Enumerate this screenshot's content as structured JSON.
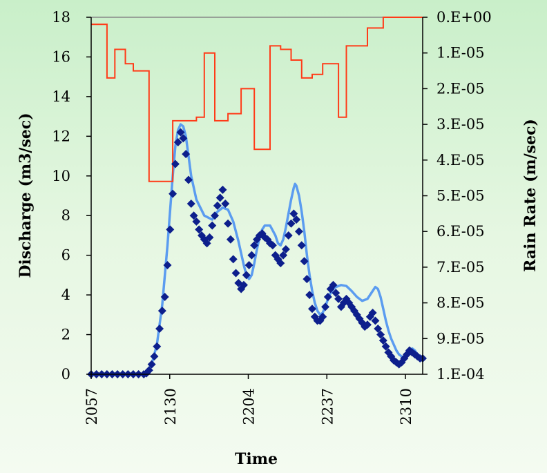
{
  "chart_data": {
    "type": "line",
    "title": "",
    "xlabel": "Time",
    "ylabel": "Discharge (m3/sec)",
    "y2label": "Rain Rate (m/sec)",
    "x_tick_labels": [
      "2057",
      "2130",
      "2204",
      "2237",
      "2310"
    ],
    "ylim": [
      0,
      18
    ],
    "y_ticks": [
      "0",
      "2",
      "4",
      "6",
      "8",
      "10",
      "12",
      "14",
      "16",
      "18"
    ],
    "y2lim": [
      0.0001,
      0
    ],
    "y2_ticks": [
      "1.E-04",
      "9.E-05",
      "8.E-05",
      "7.E-05",
      "6.E-05",
      "5.E-05",
      "4.E-05",
      "3.E-05",
      "2.E-05",
      "1.E-05",
      "0.E+00"
    ],
    "grid": false,
    "colors": {
      "observed": "#0d1f8c",
      "simulated": "#5b9cf0",
      "rain": "#ff3b18",
      "top_line": "#888888"
    },
    "series": [
      {
        "kind": "scatter",
        "axis": "left",
        "color": "#0d1f8c",
        "marker": "diamond",
        "points": [
          [
            0.0,
            0.0
          ],
          [
            0.02,
            0.0
          ],
          [
            0.04,
            0.0
          ],
          [
            0.06,
            0.0
          ],
          [
            0.08,
            0.0
          ],
          [
            0.1,
            0.0
          ],
          [
            0.12,
            0.0
          ],
          [
            0.14,
            0.0
          ],
          [
            0.16,
            0.0
          ],
          [
            0.18,
            0.0
          ],
          [
            0.2,
            0.0
          ],
          [
            0.21,
            0.05
          ],
          [
            0.22,
            0.2
          ],
          [
            0.23,
            0.5
          ],
          [
            0.24,
            0.9
          ],
          [
            0.25,
            1.4
          ],
          [
            0.26,
            2.3
          ],
          [
            0.27,
            3.2
          ],
          [
            0.28,
            3.9
          ],
          [
            0.29,
            5.5
          ],
          [
            0.3,
            7.3
          ],
          [
            0.31,
            9.1
          ],
          [
            0.32,
            10.6
          ],
          [
            0.33,
            11.7
          ],
          [
            0.34,
            12.2
          ],
          [
            0.35,
            11.9
          ],
          [
            0.36,
            11.1
          ],
          [
            0.37,
            9.8
          ],
          [
            0.38,
            8.6
          ],
          [
            0.39,
            8.0
          ],
          [
            0.4,
            7.7
          ],
          [
            0.41,
            7.3
          ],
          [
            0.42,
            7.0
          ],
          [
            0.43,
            6.8
          ],
          [
            0.44,
            6.6
          ],
          [
            0.45,
            6.9
          ],
          [
            0.46,
            7.5
          ],
          [
            0.47,
            8.0
          ],
          [
            0.48,
            8.5
          ],
          [
            0.49,
            8.9
          ],
          [
            0.5,
            9.3
          ],
          [
            0.51,
            8.6
          ],
          [
            0.52,
            7.6
          ],
          [
            0.53,
            6.8
          ],
          [
            0.54,
            5.8
          ],
          [
            0.55,
            5.1
          ],
          [
            0.56,
            4.6
          ],
          [
            0.57,
            4.3
          ],
          [
            0.58,
            4.5
          ],
          [
            0.59,
            5.0
          ],
          [
            0.6,
            5.5
          ],
          [
            0.61,
            6.0
          ],
          [
            0.62,
            6.5
          ],
          [
            0.63,
            6.8
          ],
          [
            0.64,
            7.0
          ],
          [
            0.65,
            7.1
          ],
          [
            0.66,
            6.9
          ],
          [
            0.67,
            6.8
          ],
          [
            0.68,
            6.6
          ],
          [
            0.69,
            6.5
          ],
          [
            0.7,
            6.0
          ],
          [
            0.71,
            5.8
          ],
          [
            0.72,
            5.6
          ],
          [
            0.73,
            6.0
          ],
          [
            0.74,
            6.3
          ],
          [
            0.75,
            7.0
          ],
          [
            0.76,
            7.6
          ],
          [
            0.77,
            8.1
          ],
          [
            0.78,
            7.8
          ],
          [
            0.79,
            7.2
          ],
          [
            0.8,
            6.5
          ],
          [
            0.81,
            5.7
          ],
          [
            0.82,
            4.8
          ],
          [
            0.83,
            4.0
          ],
          [
            0.84,
            3.3
          ],
          [
            0.85,
            2.9
          ],
          [
            0.86,
            2.7
          ],
          [
            0.87,
            2.7
          ],
          [
            0.88,
            2.9
          ],
          [
            0.89,
            3.4
          ],
          [
            0.9,
            3.9
          ],
          [
            0.91,
            4.3
          ],
          [
            0.92,
            4.5
          ],
          [
            0.93,
            4.1
          ],
          [
            0.94,
            3.8
          ],
          [
            0.95,
            3.4
          ],
          [
            0.96,
            3.6
          ],
          [
            0.97,
            3.8
          ],
          [
            0.98,
            3.6
          ],
          [
            0.99,
            3.4
          ],
          [
            1.0,
            3.2
          ],
          [
            1.01,
            3.0
          ],
          [
            1.02,
            2.8
          ],
          [
            1.03,
            2.6
          ],
          [
            1.04,
            2.4
          ],
          [
            1.05,
            2.5
          ],
          [
            1.06,
            2.9
          ],
          [
            1.07,
            3.1
          ],
          [
            1.08,
            2.7
          ],
          [
            1.09,
            2.3
          ],
          [
            1.1,
            2.0
          ],
          [
            1.11,
            1.7
          ],
          [
            1.12,
            1.4
          ],
          [
            1.13,
            1.1
          ],
          [
            1.14,
            0.9
          ],
          [
            1.15,
            0.7
          ],
          [
            1.16,
            0.6
          ],
          [
            1.17,
            0.5
          ],
          [
            1.18,
            0.6
          ],
          [
            1.19,
            0.8
          ],
          [
            1.2,
            1.0
          ],
          [
            1.21,
            1.2
          ],
          [
            1.22,
            1.1
          ],
          [
            1.23,
            1.0
          ],
          [
            1.24,
            0.9
          ],
          [
            1.25,
            0.8
          ],
          [
            1.26,
            0.8
          ]
        ]
      },
      {
        "kind": "line",
        "axis": "left",
        "color": "#5b9cf0",
        "points": [
          [
            0.0,
            0.0
          ],
          [
            0.1,
            0.0
          ],
          [
            0.19,
            0.0
          ],
          [
            0.21,
            0.1
          ],
          [
            0.23,
            0.5
          ],
          [
            0.25,
            1.5
          ],
          [
            0.27,
            3.5
          ],
          [
            0.29,
            6.5
          ],
          [
            0.31,
            10.0
          ],
          [
            0.32,
            11.5
          ],
          [
            0.33,
            12.3
          ],
          [
            0.34,
            12.6
          ],
          [
            0.35,
            12.5
          ],
          [
            0.36,
            12.0
          ],
          [
            0.37,
            11.0
          ],
          [
            0.38,
            10.0
          ],
          [
            0.4,
            8.8
          ],
          [
            0.43,
            8.0
          ],
          [
            0.46,
            7.8
          ],
          [
            0.48,
            8.2
          ],
          [
            0.5,
            8.4
          ],
          [
            0.52,
            8.3
          ],
          [
            0.54,
            7.7
          ],
          [
            0.56,
            6.7
          ],
          [
            0.58,
            5.5
          ],
          [
            0.59,
            5.0
          ],
          [
            0.6,
            4.8
          ],
          [
            0.61,
            5.0
          ],
          [
            0.62,
            5.6
          ],
          [
            0.63,
            6.3
          ],
          [
            0.64,
            6.9
          ],
          [
            0.65,
            7.3
          ],
          [
            0.66,
            7.5
          ],
          [
            0.68,
            7.5
          ],
          [
            0.7,
            7.0
          ],
          [
            0.71,
            6.6
          ],
          [
            0.72,
            6.5
          ],
          [
            0.73,
            6.8
          ],
          [
            0.74,
            7.4
          ],
          [
            0.75,
            8.1
          ],
          [
            0.76,
            8.8
          ],
          [
            0.77,
            9.4
          ],
          [
            0.775,
            9.6
          ],
          [
            0.78,
            9.5
          ],
          [
            0.79,
            9.0
          ],
          [
            0.8,
            8.2
          ],
          [
            0.81,
            7.2
          ],
          [
            0.82,
            6.0
          ],
          [
            0.83,
            5.0
          ],
          [
            0.84,
            4.2
          ],
          [
            0.85,
            3.6
          ],
          [
            0.86,
            3.2
          ],
          [
            0.87,
            3.0
          ],
          [
            0.88,
            3.1
          ],
          [
            0.89,
            3.4
          ],
          [
            0.9,
            3.8
          ],
          [
            0.91,
            4.1
          ],
          [
            0.92,
            4.3
          ],
          [
            0.93,
            4.4
          ],
          [
            0.95,
            4.5
          ],
          [
            0.97,
            4.45
          ],
          [
            0.99,
            4.2
          ],
          [
            1.01,
            3.9
          ],
          [
            1.03,
            3.7
          ],
          [
            1.05,
            3.8
          ],
          [
            1.07,
            4.2
          ],
          [
            1.08,
            4.4
          ],
          [
            1.09,
            4.3
          ],
          [
            1.1,
            3.9
          ],
          [
            1.11,
            3.3
          ],
          [
            1.12,
            2.7
          ],
          [
            1.13,
            2.2
          ],
          [
            1.14,
            1.8
          ],
          [
            1.15,
            1.5
          ],
          [
            1.16,
            1.2
          ],
          [
            1.17,
            1.0
          ],
          [
            1.18,
            0.9
          ],
          [
            1.19,
            0.85
          ],
          [
            1.2,
            0.9
          ],
          [
            1.21,
            1.1
          ],
          [
            1.22,
            1.3
          ],
          [
            1.23,
            1.2
          ],
          [
            1.24,
            1.0
          ],
          [
            1.25,
            0.9
          ],
          [
            1.26,
            0.85
          ]
        ]
      },
      {
        "kind": "step",
        "axis": "right",
        "color": "#ff3b18",
        "steps": [
          [
            0.0,
            2e-06
          ],
          [
            0.06,
            1.7e-05
          ],
          [
            0.09,
            9e-06
          ],
          [
            0.13,
            1.3e-05
          ],
          [
            0.16,
            1.5e-05
          ],
          [
            0.22,
            4.6e-05
          ],
          [
            0.31,
            2.9e-05
          ],
          [
            0.4,
            2.8e-05
          ],
          [
            0.43,
            1e-05
          ],
          [
            0.47,
            2.9e-05
          ],
          [
            0.52,
            2.7e-05
          ],
          [
            0.57,
            2e-05
          ],
          [
            0.62,
            3.7e-05
          ],
          [
            0.68,
            8e-06
          ],
          [
            0.72,
            9e-06
          ],
          [
            0.76,
            1.2e-05
          ],
          [
            0.8,
            1.7e-05
          ],
          [
            0.84,
            1.6e-05
          ],
          [
            0.88,
            1.3e-05
          ],
          [
            0.94,
            2.8e-05
          ],
          [
            0.97,
            8e-06
          ],
          [
            1.05,
            3e-06
          ],
          [
            1.11,
            0.0
          ],
          [
            1.26,
            0.0
          ]
        ]
      }
    ]
  }
}
